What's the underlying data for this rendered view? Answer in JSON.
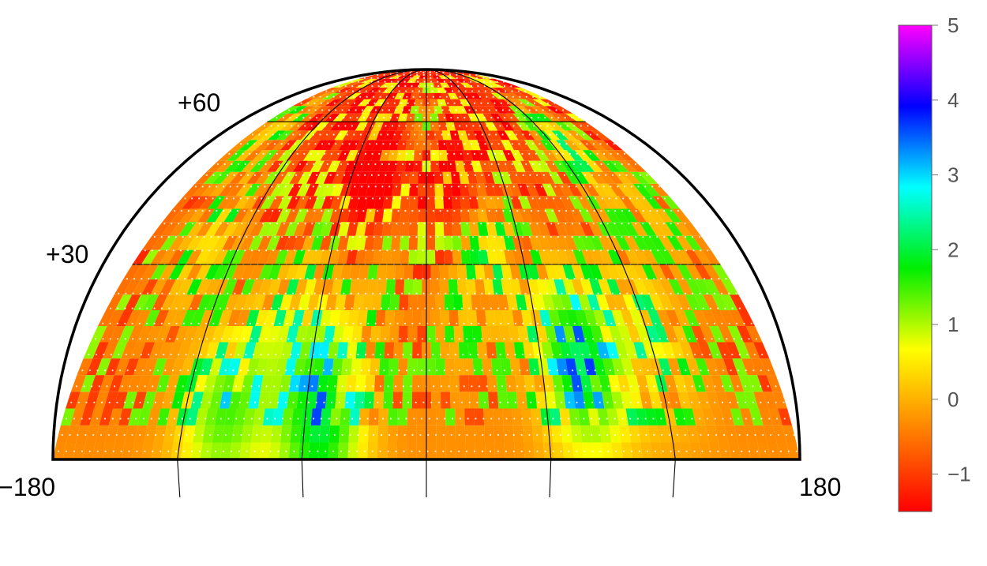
{
  "chart_data": {
    "type": "heatmap",
    "projection": "upper-hemisphere sky map",
    "title": "",
    "longitude_labels": [
      "−180",
      "180"
    ],
    "latitude_labels": [
      "+30",
      "+60"
    ],
    "lon_range": [
      -180,
      180
    ],
    "lat_range": [
      0,
      90
    ],
    "graticule": {
      "meridians": [
        -120,
        -60,
        0,
        60,
        120
      ],
      "parallels": [
        30,
        60
      ]
    },
    "colorbar": {
      "ticks": [
        "5",
        "4",
        "3",
        "2",
        "1",
        "0",
        "−1"
      ],
      "tick_values": [
        5,
        4,
        3,
        2,
        1,
        0,
        -1
      ],
      "range": [
        -1.5,
        5
      ],
      "colors": [
        "#ff0000",
        "#ff8000",
        "#ffff00",
        "#00ee00",
        "#00ffff",
        "#0000ff",
        "#ff00ff"
      ]
    },
    "features": [
      {
        "lon": -100,
        "lat": 8,
        "value": 1.8
      },
      {
        "lon": -52,
        "lat": 6,
        "value": 2.3
      },
      {
        "lon": 80,
        "lat": 15,
        "value": 2.6
      },
      {
        "lon": -20,
        "lat": 30,
        "value": 1.2
      },
      {
        "lon": 10,
        "lat": 25,
        "value": 1.0
      },
      {
        "lon": 40,
        "lat": 35,
        "value": 1.4
      },
      {
        "lon": -70,
        "lat": 25,
        "value": 1.0
      },
      {
        "lon": 120,
        "lat": 20,
        "value": 1.2
      },
      {
        "lon": -140,
        "lat": 35,
        "value": 1.1
      },
      {
        "lon": 0,
        "lat": 62,
        "value": 0.9
      },
      {
        "lon": 130,
        "lat": 55,
        "value": 1.5
      },
      {
        "lon": -160,
        "lat": 60,
        "value": 1.3
      },
      {
        "lon": 160,
        "lat": 40,
        "value": 0.8
      },
      {
        "lon": -40,
        "lat": 45,
        "value": -1.3
      },
      {
        "lon": 25,
        "lat": 45,
        "value": -1.2
      },
      {
        "lon": -5,
        "lat": 28,
        "value": -1.2
      }
    ]
  }
}
